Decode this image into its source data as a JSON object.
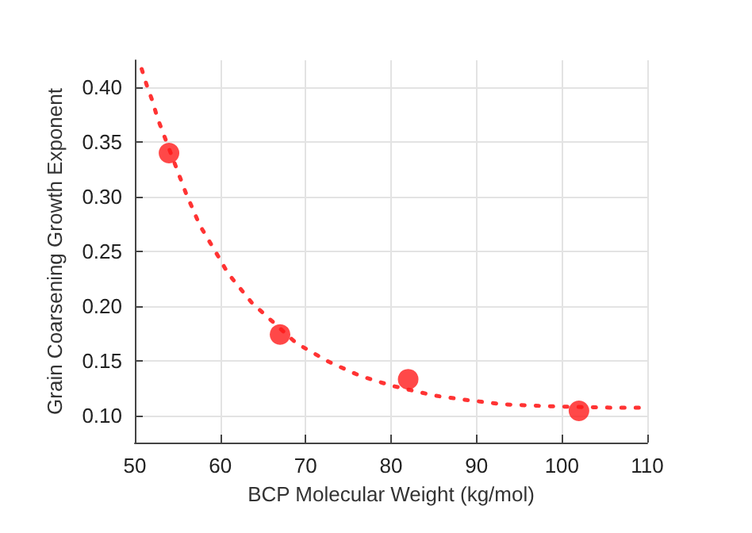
{
  "chart_data": {
    "type": "scatter",
    "xlabel": "BCP Molecular Weight (kg/mol)",
    "ylabel": "Grain Coarsening Growth Exponent",
    "xlim": [
      50,
      110
    ],
    "xticks": [
      50,
      60,
      70,
      80,
      90,
      100,
      110
    ],
    "ylim": [
      0.075,
      0.425
    ],
    "yticks": [
      {
        "value": 0.1,
        "label": "0.10"
      },
      0.15,
      {
        "value": 0.2,
        "label": "0.20"
      },
      0.25,
      {
        "value": 0.3,
        "label": "0.30"
      },
      0.35,
      {
        "value": 0.4,
        "label": "0.40"
      }
    ],
    "grid": true,
    "series": [
      {
        "color": "#ff1a1a",
        "marker": "circle",
        "x": [
          54,
          67,
          82,
          102
        ],
        "values": [
          0.34,
          0.174,
          0.133,
          0.104
        ]
      },
      {
        "type": "line",
        "color": "#ff3333",
        "marker": "none",
        "line_style": "dotted",
        "x": [
          50.8,
          51.4,
          52,
          52.7,
          56,
          57.6,
          59.8,
          60.9,
          63.7,
          68.9,
          72.7,
          76.4,
          80.1,
          85.1,
          88.8,
          93.2,
          99.4,
          105.6,
          109.6
        ],
        "values": [
          0.417,
          0.402,
          0.389,
          0.371,
          0.303,
          0.274,
          0.245,
          0.23,
          0.203,
          0.166,
          0.149,
          0.136,
          0.127,
          0.118,
          0.114,
          0.11,
          0.108,
          0.107,
          0.107
        ]
      }
    ]
  }
}
